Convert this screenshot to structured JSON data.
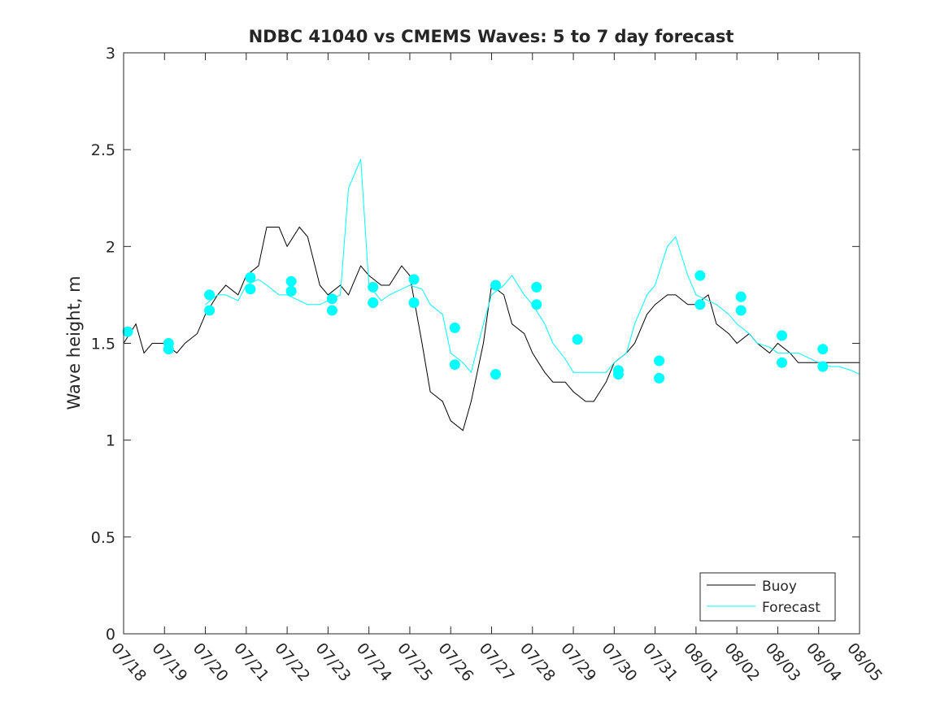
{
  "chart_data": {
    "type": "line",
    "title": "NDBC 41040 vs CMEMS Waves: 5 to 7 day forecast",
    "xlabel": "",
    "ylabel": "Wave height, m",
    "ylim": [
      0,
      3
    ],
    "xlim": [
      "07/18",
      "08/05"
    ],
    "x_tick_labels": [
      "07/18",
      "07/19",
      "07/20",
      "07/21",
      "07/22",
      "07/23",
      "07/24",
      "07/25",
      "07/26",
      "07/27",
      "07/28",
      "07/29",
      "07/30",
      "07/31",
      "08/01",
      "08/02",
      "08/03",
      "08/04",
      "08/05"
    ],
    "y_ticks": [
      0,
      0.5,
      1,
      1.5,
      2,
      2.5,
      3
    ],
    "y_tick_labels": [
      "0",
      "0.5",
      "1",
      "1.5",
      "2",
      "2.5",
      "3"
    ],
    "grid": false,
    "legend_position": "bottom-right",
    "colors": {
      "buoy": "#000000",
      "forecast": "#00ffff"
    },
    "series": [
      {
        "name": "Buoy",
        "x": [
          0.0,
          0.3,
          0.5,
          0.7,
          1.0,
          1.3,
          1.5,
          1.8,
          2.0,
          2.3,
          2.5,
          2.8,
          3.0,
          3.3,
          3.5,
          3.8,
          4.0,
          4.3,
          4.5,
          4.8,
          5.0,
          5.3,
          5.5,
          5.8,
          6.0,
          6.3,
          6.5,
          6.8,
          7.0,
          7.3,
          7.5,
          7.8,
          8.0,
          8.3,
          8.5,
          8.8,
          9.0,
          9.3,
          9.5,
          9.8,
          10.0,
          10.3,
          10.5,
          10.8,
          11.0,
          11.3,
          11.5,
          11.8,
          12.0,
          12.3,
          12.5,
          12.8,
          13.0,
          13.3,
          13.5,
          13.8,
          14.0,
          14.3,
          14.5,
          14.8,
          15.0,
          15.3,
          15.5,
          15.8,
          16.0,
          16.3,
          16.5,
          16.8,
          17.0,
          17.3,
          17.5,
          17.8,
          18.0
        ],
        "y": [
          1.5,
          1.6,
          1.45,
          1.5,
          1.5,
          1.45,
          1.5,
          1.55,
          1.65,
          1.75,
          1.8,
          1.75,
          1.85,
          1.9,
          2.1,
          2.1,
          2.0,
          2.1,
          2.05,
          1.8,
          1.75,
          1.8,
          1.75,
          1.9,
          1.85,
          1.8,
          1.8,
          1.9,
          1.85,
          1.5,
          1.25,
          1.2,
          1.1,
          1.05,
          1.2,
          1.5,
          1.8,
          1.75,
          1.6,
          1.55,
          1.45,
          1.35,
          1.3,
          1.3,
          1.25,
          1.2,
          1.2,
          1.3,
          1.4,
          1.45,
          1.5,
          1.65,
          1.7,
          1.75,
          1.75,
          1.7,
          1.7,
          1.75,
          1.6,
          1.55,
          1.5,
          1.55,
          1.5,
          1.45,
          1.5,
          1.45,
          1.4,
          1.4,
          1.4,
          1.4,
          1.4,
          1.4,
          1.4
        ]
      },
      {
        "name": "Forecast",
        "x": [
          2.0,
          2.3,
          2.5,
          2.8,
          3.0,
          3.3,
          3.5,
          3.8,
          4.0,
          4.3,
          4.5,
          4.8,
          5.0,
          5.3,
          5.5,
          5.8,
          6.0,
          6.3,
          6.5,
          6.8,
          7.0,
          7.3,
          7.5,
          7.8,
          8.0,
          8.3,
          8.5,
          8.8,
          9.0,
          9.3,
          9.5,
          9.8,
          10.0,
          10.3,
          10.5,
          10.8,
          11.0,
          11.3,
          11.5,
          11.8,
          12.0,
          12.3,
          12.5,
          12.8,
          13.0,
          13.3,
          13.5,
          13.8,
          14.0,
          14.3,
          14.5,
          14.8,
          15.0,
          15.3,
          15.5,
          15.8,
          16.0,
          16.3,
          16.5,
          16.8,
          17.0,
          17.3,
          17.5,
          17.8,
          18.0
        ],
        "y": [
          1.7,
          1.75,
          1.75,
          1.72,
          1.8,
          1.83,
          1.8,
          1.75,
          1.75,
          1.72,
          1.7,
          1.7,
          1.72,
          1.75,
          2.3,
          2.45,
          1.8,
          1.72,
          1.75,
          1.78,
          1.8,
          1.78,
          1.7,
          1.65,
          1.45,
          1.4,
          1.35,
          1.6,
          1.75,
          1.8,
          1.85,
          1.75,
          1.7,
          1.6,
          1.5,
          1.42,
          1.35,
          1.35,
          1.35,
          1.35,
          1.4,
          1.45,
          1.6,
          1.75,
          1.8,
          2.0,
          2.05,
          1.85,
          1.75,
          1.72,
          1.7,
          1.65,
          1.6,
          1.55,
          1.5,
          1.48,
          1.45,
          1.45,
          1.45,
          1.42,
          1.4,
          1.38,
          1.38,
          1.36,
          1.34
        ]
      }
    ],
    "forecast_markers": {
      "x": [
        0.1,
        1.1,
        1.1,
        2.1,
        2.1,
        3.1,
        3.1,
        4.1,
        4.1,
        5.1,
        5.1,
        6.1,
        6.1,
        7.1,
        7.1,
        8.1,
        8.1,
        9.1,
        9.1,
        10.1,
        10.1,
        11.1,
        12.1,
        12.1,
        13.1,
        13.1,
        14.1,
        14.1,
        15.1,
        15.1,
        16.1,
        16.1,
        17.1,
        17.1
      ],
      "y": [
        1.56,
        1.5,
        1.47,
        1.75,
        1.67,
        1.84,
        1.78,
        1.82,
        1.77,
        1.73,
        1.67,
        1.79,
        1.71,
        1.83,
        1.71,
        1.58,
        1.39,
        1.8,
        1.34,
        1.79,
        1.7,
        1.52,
        1.36,
        1.34,
        1.41,
        1.32,
        1.85,
        1.7,
        1.74,
        1.67,
        1.54,
        1.4,
        1.47,
        1.38
      ]
    }
  }
}
